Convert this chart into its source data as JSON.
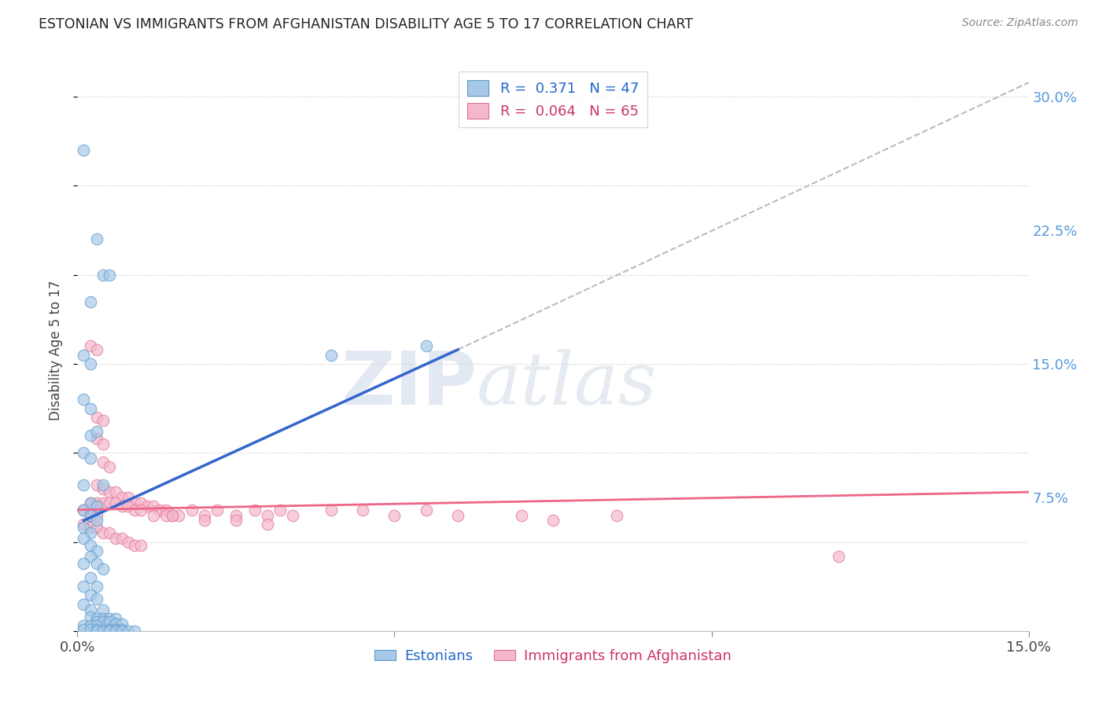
{
  "title": "ESTONIAN VS IMMIGRANTS FROM AFGHANISTAN DISABILITY AGE 5 TO 17 CORRELATION CHART",
  "source": "Source: ZipAtlas.com",
  "ylabel": "Disability Age 5 to 17",
  "xlim": [
    0.0,
    0.15
  ],
  "ylim": [
    0.0,
    0.315
  ],
  "yticks": [
    0.0,
    0.075,
    0.15,
    0.225,
    0.3
  ],
  "ytick_labels": [
    "",
    "7.5%",
    "15.0%",
    "22.5%",
    "30.0%"
  ],
  "color_blue": "#a8c8e8",
  "color_pink": "#f4b8cc",
  "edge_blue": "#5599cc",
  "edge_pink": "#e07090",
  "line_blue": "#3366cc",
  "line_pink": "#ee6688",
  "line_dashed_color": "#bbbbbb",
  "watermark": "ZIPatlas",
  "estonian_points": [
    [
      0.001,
      0.27
    ],
    [
      0.003,
      0.22
    ],
    [
      0.004,
      0.2
    ],
    [
      0.005,
      0.2
    ],
    [
      0.002,
      0.185
    ],
    [
      0.001,
      0.155
    ],
    [
      0.002,
      0.15
    ],
    [
      0.001,
      0.13
    ],
    [
      0.002,
      0.125
    ],
    [
      0.002,
      0.11
    ],
    [
      0.003,
      0.112
    ],
    [
      0.001,
      0.1
    ],
    [
      0.002,
      0.097
    ],
    [
      0.001,
      0.082
    ],
    [
      0.004,
      0.082
    ],
    [
      0.002,
      0.072
    ],
    [
      0.003,
      0.07
    ],
    [
      0.001,
      0.068
    ],
    [
      0.002,
      0.065
    ],
    [
      0.003,
      0.062
    ],
    [
      0.001,
      0.058
    ],
    [
      0.002,
      0.055
    ],
    [
      0.001,
      0.052
    ],
    [
      0.002,
      0.048
    ],
    [
      0.003,
      0.045
    ],
    [
      0.002,
      0.042
    ],
    [
      0.001,
      0.038
    ],
    [
      0.003,
      0.038
    ],
    [
      0.004,
      0.035
    ],
    [
      0.002,
      0.03
    ],
    [
      0.001,
      0.025
    ],
    [
      0.003,
      0.025
    ],
    [
      0.002,
      0.02
    ],
    [
      0.003,
      0.018
    ],
    [
      0.001,
      0.015
    ],
    [
      0.002,
      0.012
    ],
    [
      0.004,
      0.012
    ],
    [
      0.002,
      0.008
    ],
    [
      0.003,
      0.007
    ],
    [
      0.004,
      0.007
    ],
    [
      0.005,
      0.007
    ],
    [
      0.006,
      0.007
    ],
    [
      0.003,
      0.005
    ],
    [
      0.004,
      0.005
    ],
    [
      0.005,
      0.005
    ],
    [
      0.006,
      0.004
    ],
    [
      0.007,
      0.004
    ],
    [
      0.001,
      0.003
    ],
    [
      0.002,
      0.003
    ],
    [
      0.003,
      0.003
    ],
    [
      0.001,
      0.001
    ],
    [
      0.002,
      0.001
    ],
    [
      0.003,
      0.001
    ],
    [
      0.005,
      0.001
    ],
    [
      0.006,
      0.001
    ],
    [
      0.007,
      0.001
    ],
    [
      0.003,
      0.0
    ],
    [
      0.004,
      0.0
    ],
    [
      0.005,
      0.0
    ],
    [
      0.006,
      0.0
    ],
    [
      0.007,
      0.0
    ],
    [
      0.008,
      0.0
    ],
    [
      0.009,
      0.0
    ],
    [
      0.04,
      0.155
    ],
    [
      0.055,
      0.16
    ]
  ],
  "afghanistan_points": [
    [
      0.002,
      0.16
    ],
    [
      0.003,
      0.158
    ],
    [
      0.003,
      0.12
    ],
    [
      0.004,
      0.118
    ],
    [
      0.003,
      0.108
    ],
    [
      0.004,
      0.105
    ],
    [
      0.004,
      0.095
    ],
    [
      0.005,
      0.092
    ],
    [
      0.003,
      0.082
    ],
    [
      0.004,
      0.08
    ],
    [
      0.005,
      0.078
    ],
    [
      0.006,
      0.078
    ],
    [
      0.007,
      0.075
    ],
    [
      0.008,
      0.075
    ],
    [
      0.009,
      0.072
    ],
    [
      0.01,
      0.072
    ],
    [
      0.011,
      0.07
    ],
    [
      0.012,
      0.07
    ],
    [
      0.013,
      0.068
    ],
    [
      0.014,
      0.068
    ],
    [
      0.015,
      0.065
    ],
    [
      0.016,
      0.065
    ],
    [
      0.018,
      0.068
    ],
    [
      0.02,
      0.065
    ],
    [
      0.022,
      0.068
    ],
    [
      0.025,
      0.065
    ],
    [
      0.028,
      0.068
    ],
    [
      0.03,
      0.065
    ],
    [
      0.032,
      0.068
    ],
    [
      0.034,
      0.065
    ],
    [
      0.04,
      0.068
    ],
    [
      0.045,
      0.068
    ],
    [
      0.05,
      0.065
    ],
    [
      0.055,
      0.068
    ],
    [
      0.06,
      0.065
    ],
    [
      0.07,
      0.065
    ],
    [
      0.075,
      0.062
    ],
    [
      0.085,
      0.065
    ],
    [
      0.002,
      0.072
    ],
    [
      0.003,
      0.072
    ],
    [
      0.004,
      0.072
    ],
    [
      0.005,
      0.072
    ],
    [
      0.006,
      0.072
    ],
    [
      0.007,
      0.07
    ],
    [
      0.008,
      0.07
    ],
    [
      0.009,
      0.068
    ],
    [
      0.001,
      0.068
    ],
    [
      0.002,
      0.068
    ],
    [
      0.002,
      0.065
    ],
    [
      0.003,
      0.065
    ],
    [
      0.01,
      0.068
    ],
    [
      0.012,
      0.065
    ],
    [
      0.014,
      0.065
    ],
    [
      0.015,
      0.065
    ],
    [
      0.02,
      0.062
    ],
    [
      0.025,
      0.062
    ],
    [
      0.03,
      0.06
    ],
    [
      0.001,
      0.06
    ],
    [
      0.002,
      0.058
    ],
    [
      0.003,
      0.058
    ],
    [
      0.004,
      0.055
    ],
    [
      0.005,
      0.055
    ],
    [
      0.006,
      0.052
    ],
    [
      0.007,
      0.052
    ],
    [
      0.008,
      0.05
    ],
    [
      0.009,
      0.048
    ],
    [
      0.01,
      0.048
    ],
    [
      0.12,
      0.042
    ]
  ],
  "blue_line": [
    [
      0.001,
      0.062
    ],
    [
      0.06,
      0.158
    ]
  ],
  "pink_line": [
    [
      0.0,
      0.068
    ],
    [
      0.15,
      0.078
    ]
  ],
  "dashed_line": [
    [
      0.06,
      0.158
    ],
    [
      0.15,
      0.308
    ]
  ]
}
